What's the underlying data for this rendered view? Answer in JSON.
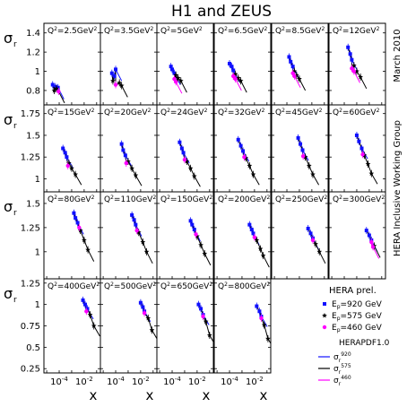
{
  "figure": {
    "title": "H1 and ZEUS",
    "side_labels": [
      "March 2010",
      "HERA Inclusive Working Group"
    ],
    "xlabel": "x",
    "ylabel_main": "σ",
    "ylabel_sub": "r"
  },
  "legend": {
    "data_header": "HERA prel.",
    "data_entries": [
      {
        "label_main": "E",
        "label_sub": "p",
        "label_rest": "=920 GeV",
        "marker": "square",
        "color": "#1010ff"
      },
      {
        "label_main": "E",
        "label_sub": "p",
        "label_rest": "=575 GeV",
        "marker": "star",
        "color": "#000000"
      },
      {
        "label_main": "E",
        "label_sub": "p",
        "label_rest": "=460 GeV",
        "marker": "circle",
        "color": "#ff00ff"
      }
    ],
    "fit_header": "HERAPDF1.0",
    "fit_entries": [
      {
        "label_main": "σ",
        "label_sub": "r",
        "label_sup": "920",
        "color": "#1010ff"
      },
      {
        "label_main": "σ",
        "label_sub": "r",
        "label_sup": "575",
        "color": "#000000"
      },
      {
        "label_main": "σ",
        "label_sub": "r",
        "label_sup": "460",
        "color": "#ff00ff"
      }
    ]
  },
  "chart_data": {
    "type": "scatter",
    "x_scale": "log",
    "x_tick_labels": [
      {
        "value": 0.0001,
        "base": "10",
        "exp": "-4"
      },
      {
        "value": 0.01,
        "base": "10",
        "exp": "-2"
      }
    ],
    "rows": [
      {
        "ylim": [
          0.65,
          1.5
        ],
        "yticks": [
          "0.8",
          "1",
          "1.2",
          "1.4"
        ],
        "ytick_values": [
          0.8,
          1.0,
          1.2,
          1.4
        ]
      },
      {
        "ylim": [
          0.85,
          1.85
        ],
        "yticks": [
          "1",
          "1.25",
          "1.5",
          "1.75"
        ],
        "ytick_values": [
          1.0,
          1.25,
          1.5,
          1.75
        ]
      },
      {
        "ylim": [
          0.72,
          1.62
        ],
        "yticks": [
          "1",
          "1.25",
          "1.5"
        ],
        "ytick_values": [
          1.0,
          1.25,
          1.5
        ]
      },
      {
        "ylim": [
          0.2,
          1.3
        ],
        "yticks": [
          "0.25",
          "0.5",
          "0.75",
          "1",
          "1.25"
        ],
        "ytick_values": [
          0.25,
          0.5,
          0.75,
          1.0,
          1.25
        ]
      }
    ],
    "panels": [
      {
        "row": 0,
        "col": 0,
        "q2": "2.5",
        "points": [
          {
            "x": 3e-05,
            "y": 0.86,
            "series": "920"
          },
          {
            "x": 5e-05,
            "y": 0.84,
            "series": "920"
          },
          {
            "x": 8e-05,
            "y": 0.83,
            "series": "920"
          },
          {
            "x": 4e-05,
            "y": 0.8,
            "series": "575"
          },
          {
            "x": 6e-05,
            "y": 0.82,
            "series": "575"
          },
          {
            "x": 9e-05,
            "y": 0.79,
            "series": "460"
          }
        ]
      },
      {
        "row": 0,
        "col": 1,
        "q2": "3.5",
        "points": [
          {
            "x": 5e-05,
            "y": 0.98,
            "series": "920"
          },
          {
            "x": 8e-05,
            "y": 0.95,
            "series": "920"
          },
          {
            "x": 0.0001,
            "y": 1.02,
            "series": "920"
          },
          {
            "x": 6e-05,
            "y": 0.9,
            "series": "575"
          },
          {
            "x": 0.0002,
            "y": 0.88,
            "series": "575"
          },
          {
            "x": 0.0003,
            "y": 0.85,
            "series": "575"
          },
          {
            "x": 0.0001,
            "y": 0.86,
            "series": "460"
          }
        ]
      },
      {
        "row": 0,
        "col": 2,
        "q2": "5",
        "points": [
          {
            "x": 8e-05,
            "y": 1.05,
            "series": "920"
          },
          {
            "x": 0.0001,
            "y": 1.02,
            "series": "920"
          },
          {
            "x": 0.00015,
            "y": 0.98,
            "series": "920"
          },
          {
            "x": 0.0002,
            "y": 0.96,
            "series": "575"
          },
          {
            "x": 0.0003,
            "y": 0.93,
            "series": "575"
          },
          {
            "x": 0.0005,
            "y": 0.9,
            "series": "575"
          },
          {
            "x": 0.00015,
            "y": 0.92,
            "series": "460"
          },
          {
            "x": 0.0002,
            "y": 0.89,
            "series": "460"
          }
        ]
      },
      {
        "row": 0,
        "col": 3,
        "q2": "6.5",
        "points": [
          {
            "x": 0.0001,
            "y": 1.08,
            "series": "920"
          },
          {
            "x": 0.00015,
            "y": 1.05,
            "series": "920"
          },
          {
            "x": 0.0002,
            "y": 1.01,
            "series": "920"
          },
          {
            "x": 0.0003,
            "y": 0.97,
            "series": "575"
          },
          {
            "x": 0.0005,
            "y": 0.93,
            "series": "575"
          },
          {
            "x": 0.0008,
            "y": 0.9,
            "series": "575"
          },
          {
            "x": 0.0002,
            "y": 0.95,
            "series": "460"
          },
          {
            "x": 0.0003,
            "y": 0.92,
            "series": "460"
          }
        ]
      },
      {
        "row": 0,
        "col": 4,
        "q2": "8.5",
        "points": [
          {
            "x": 0.00015,
            "y": 1.15,
            "series": "920"
          },
          {
            "x": 0.0002,
            "y": 1.1,
            "series": "920"
          },
          {
            "x": 0.0003,
            "y": 1.05,
            "series": "920"
          },
          {
            "x": 0.0004,
            "y": 1.0,
            "series": "575"
          },
          {
            "x": 0.0006,
            "y": 0.96,
            "series": "575"
          },
          {
            "x": 0.001,
            "y": 0.92,
            "series": "575"
          },
          {
            "x": 0.0003,
            "y": 0.98,
            "series": "460"
          },
          {
            "x": 0.0004,
            "y": 0.95,
            "series": "460"
          }
        ]
      },
      {
        "row": 0,
        "col": 5,
        "q2": "12",
        "points": [
          {
            "x": 0.0002,
            "y": 1.25,
            "series": "920"
          },
          {
            "x": 0.0003,
            "y": 1.18,
            "series": "920"
          },
          {
            "x": 0.0004,
            "y": 1.12,
            "series": "920"
          },
          {
            "x": 0.0006,
            "y": 1.06,
            "series": "575"
          },
          {
            "x": 0.001,
            "y": 1.0,
            "series": "575"
          },
          {
            "x": 0.002,
            "y": 0.94,
            "series": "575"
          },
          {
            "x": 0.0004,
            "y": 1.03,
            "series": "460"
          },
          {
            "x": 0.0006,
            "y": 1.0,
            "series": "460"
          }
        ]
      },
      {
        "row": 1,
        "col": 0,
        "q2": "15",
        "points": [
          {
            "x": 0.0002,
            "y": 1.35,
            "series": "920"
          },
          {
            "x": 0.0003,
            "y": 1.3,
            "series": "920"
          },
          {
            "x": 0.0004,
            "y": 1.25,
            "series": "920"
          },
          {
            "x": 0.0006,
            "y": 1.18,
            "series": "575"
          },
          {
            "x": 0.001,
            "y": 1.12,
            "series": "575"
          },
          {
            "x": 0.002,
            "y": 1.05,
            "series": "575"
          },
          {
            "x": 0.0005,
            "y": 1.15,
            "series": "460"
          }
        ]
      },
      {
        "row": 1,
        "col": 1,
        "q2": "20",
        "points": [
          {
            "x": 0.0003,
            "y": 1.4,
            "series": "920"
          },
          {
            "x": 0.0004,
            "y": 1.33,
            "series": "920"
          },
          {
            "x": 0.0006,
            "y": 1.27,
            "series": "920"
          },
          {
            "x": 0.001,
            "y": 1.2,
            "series": "575"
          },
          {
            "x": 0.002,
            "y": 1.12,
            "series": "575"
          },
          {
            "x": 0.004,
            "y": 1.04,
            "series": "575"
          },
          {
            "x": 0.0007,
            "y": 1.18,
            "series": "460"
          }
        ]
      },
      {
        "row": 1,
        "col": 2,
        "q2": "24",
        "points": [
          {
            "x": 0.0004,
            "y": 1.42,
            "series": "920"
          },
          {
            "x": 0.0006,
            "y": 1.35,
            "series": "920"
          },
          {
            "x": 0.0008,
            "y": 1.3,
            "series": "920"
          },
          {
            "x": 0.0015,
            "y": 1.2,
            "series": "575"
          },
          {
            "x": 0.003,
            "y": 1.12,
            "series": "575"
          },
          {
            "x": 0.006,
            "y": 1.03,
            "series": "575"
          },
          {
            "x": 0.001,
            "y": 1.22,
            "series": "460"
          }
        ]
      },
      {
        "row": 1,
        "col": 3,
        "q2": "32",
        "points": [
          {
            "x": 0.0005,
            "y": 1.45,
            "series": "920"
          },
          {
            "x": 0.0008,
            "y": 1.38,
            "series": "920"
          },
          {
            "x": 0.0012,
            "y": 1.32,
            "series": "920"
          },
          {
            "x": 0.002,
            "y": 1.24,
            "series": "575"
          },
          {
            "x": 0.004,
            "y": 1.15,
            "series": "575"
          },
          {
            "x": 0.008,
            "y": 1.05,
            "series": "575"
          },
          {
            "x": 0.0015,
            "y": 1.25,
            "series": "460"
          }
        ]
      },
      {
        "row": 1,
        "col": 4,
        "q2": "45",
        "points": [
          {
            "x": 0.0008,
            "y": 1.47,
            "series": "920"
          },
          {
            "x": 0.0012,
            "y": 1.4,
            "series": "920"
          },
          {
            "x": 0.0018,
            "y": 1.33,
            "series": "920"
          },
          {
            "x": 0.003,
            "y": 1.25,
            "series": "575"
          },
          {
            "x": 0.006,
            "y": 1.15,
            "series": "575"
          },
          {
            "x": 0.012,
            "y": 1.05,
            "series": "575"
          },
          {
            "x": 0.002,
            "y": 1.26,
            "series": "460"
          }
        ]
      },
      {
        "row": 1,
        "col": 5,
        "q2": "60",
        "points": [
          {
            "x": 0.001,
            "y": 1.5,
            "series": "920"
          },
          {
            "x": 0.0015,
            "y": 1.43,
            "series": "920"
          },
          {
            "x": 0.0025,
            "y": 1.35,
            "series": "920"
          },
          {
            "x": 0.004,
            "y": 1.27,
            "series": "575"
          },
          {
            "x": 0.008,
            "y": 1.17,
            "series": "575"
          },
          {
            "x": 0.015,
            "y": 1.06,
            "series": "575"
          },
          {
            "x": 0.003,
            "y": 1.28,
            "series": "460"
          }
        ]
      },
      {
        "row": 2,
        "col": 0,
        "q2": "80",
        "points": [
          {
            "x": 0.0015,
            "y": 1.4,
            "series": "920"
          },
          {
            "x": 0.002,
            "y": 1.35,
            "series": "920"
          },
          {
            "x": 0.003,
            "y": 1.3,
            "series": "920"
          },
          {
            "x": 0.005,
            "y": 1.22,
            "series": "575"
          },
          {
            "x": 0.01,
            "y": 1.12,
            "series": "575"
          },
          {
            "x": 0.02,
            "y": 1.02,
            "series": "575"
          },
          {
            "x": 0.004,
            "y": 1.25,
            "series": "460"
          }
        ]
      },
      {
        "row": 2,
        "col": 1,
        "q2": "110",
        "points": [
          {
            "x": 0.002,
            "y": 1.38,
            "series": "920"
          },
          {
            "x": 0.003,
            "y": 1.33,
            "series": "920"
          },
          {
            "x": 0.004,
            "y": 1.28,
            "series": "920"
          },
          {
            "x": 0.007,
            "y": 1.2,
            "series": "575"
          },
          {
            "x": 0.015,
            "y": 1.1,
            "series": "575"
          },
          {
            "x": 0.03,
            "y": 1.0,
            "series": "575"
          },
          {
            "x": 0.005,
            "y": 1.22,
            "series": "460"
          }
        ]
      },
      {
        "row": 2,
        "col": 2,
        "q2": "150",
        "points": [
          {
            "x": 0.003,
            "y": 1.32,
            "series": "920"
          },
          {
            "x": 0.004,
            "y": 1.28,
            "series": "920"
          },
          {
            "x": 0.006,
            "y": 1.23,
            "series": "920"
          },
          {
            "x": 0.01,
            "y": 1.16,
            "series": "575"
          },
          {
            "x": 0.02,
            "y": 1.07,
            "series": "575"
          },
          {
            "x": 0.04,
            "y": 0.98,
            "series": "575"
          },
          {
            "x": 0.008,
            "y": 1.18,
            "series": "460"
          }
        ]
      },
      {
        "row": 2,
        "col": 3,
        "q2": "200",
        "points": [
          {
            "x": 0.004,
            "y": 1.28,
            "series": "920"
          },
          {
            "x": 0.006,
            "y": 1.23,
            "series": "920"
          },
          {
            "x": 0.008,
            "y": 1.19,
            "series": "920"
          },
          {
            "x": 0.015,
            "y": 1.12,
            "series": "575"
          },
          {
            "x": 0.03,
            "y": 1.03,
            "series": "575"
          },
          {
            "x": 0.05,
            "y": 0.96,
            "series": "575"
          },
          {
            "x": 0.01,
            "y": 1.15,
            "series": "460"
          }
        ]
      },
      {
        "row": 2,
        "col": 4,
        "q2": "250",
        "points": [
          {
            "x": 0.005,
            "y": 1.24,
            "series": "920"
          },
          {
            "x": 0.008,
            "y": 1.19,
            "series": "920"
          },
          {
            "x": 0.012,
            "y": 1.14,
            "series": "920"
          },
          {
            "x": 0.02,
            "y": 1.08,
            "series": "575"
          },
          {
            "x": 0.04,
            "y": 1.0,
            "series": "575"
          },
          {
            "x": 0.012,
            "y": 1.12,
            "series": "460"
          }
        ]
      },
      {
        "row": 2,
        "col": 5,
        "q2": "300",
        "points": [
          {
            "x": 0.006,
            "y": 1.22,
            "series": "920"
          },
          {
            "x": 0.01,
            "y": 1.17,
            "series": "920"
          },
          {
            "x": 0.015,
            "y": 1.12,
            "series": "920"
          },
          {
            "x": 0.025,
            "y": 1.06,
            "series": "575"
          },
          {
            "x": 0.015,
            "y": 1.1,
            "series": "460"
          },
          {
            "x": 0.02,
            "y": 1.05,
            "series": "460"
          }
        ]
      },
      {
        "row": 3,
        "col": 0,
        "q2": "400",
        "points": [
          {
            "x": 0.008,
            "y": 1.05,
            "series": "920"
          },
          {
            "x": 0.012,
            "y": 1.0,
            "series": "920"
          },
          {
            "x": 0.018,
            "y": 0.95,
            "series": "920"
          },
          {
            "x": 0.03,
            "y": 0.88,
            "series": "575"
          },
          {
            "x": 0.06,
            "y": 0.75,
            "series": "575"
          },
          {
            "x": 0.015,
            "y": 0.92,
            "series": "460"
          }
        ]
      },
      {
        "row": 3,
        "col": 1,
        "q2": "500",
        "points": [
          {
            "x": 0.01,
            "y": 1.02,
            "series": "920"
          },
          {
            "x": 0.015,
            "y": 0.97,
            "series": "920"
          },
          {
            "x": 0.02,
            "y": 0.92,
            "series": "920"
          },
          {
            "x": 0.04,
            "y": 0.84,
            "series": "575"
          },
          {
            "x": 0.08,
            "y": 0.7,
            "series": "575"
          },
          {
            "x": 0.02,
            "y": 0.9,
            "series": "460"
          }
        ]
      },
      {
        "row": 3,
        "col": 2,
        "q2": "650",
        "points": [
          {
            "x": 0.013,
            "y": 1.0,
            "series": "920"
          },
          {
            "x": 0.02,
            "y": 0.95,
            "series": "920"
          },
          {
            "x": 0.03,
            "y": 0.88,
            "series": "920"
          },
          {
            "x": 0.05,
            "y": 0.8,
            "series": "575"
          },
          {
            "x": 0.1,
            "y": 0.64,
            "series": "575"
          },
          {
            "x": 0.03,
            "y": 0.86,
            "series": "460"
          }
        ]
      },
      {
        "row": 3,
        "col": 3,
        "q2": "800",
        "points": [
          {
            "x": 0.015,
            "y": 0.98,
            "series": "920"
          },
          {
            "x": 0.025,
            "y": 0.92,
            "series": "920"
          },
          {
            "x": 0.035,
            "y": 0.86,
            "series": "920"
          },
          {
            "x": 0.06,
            "y": 0.76,
            "series": "575"
          },
          {
            "x": 0.12,
            "y": 0.6,
            "series": "575"
          },
          {
            "x": 0.035,
            "y": 0.84,
            "series": "460"
          }
        ]
      }
    ]
  }
}
